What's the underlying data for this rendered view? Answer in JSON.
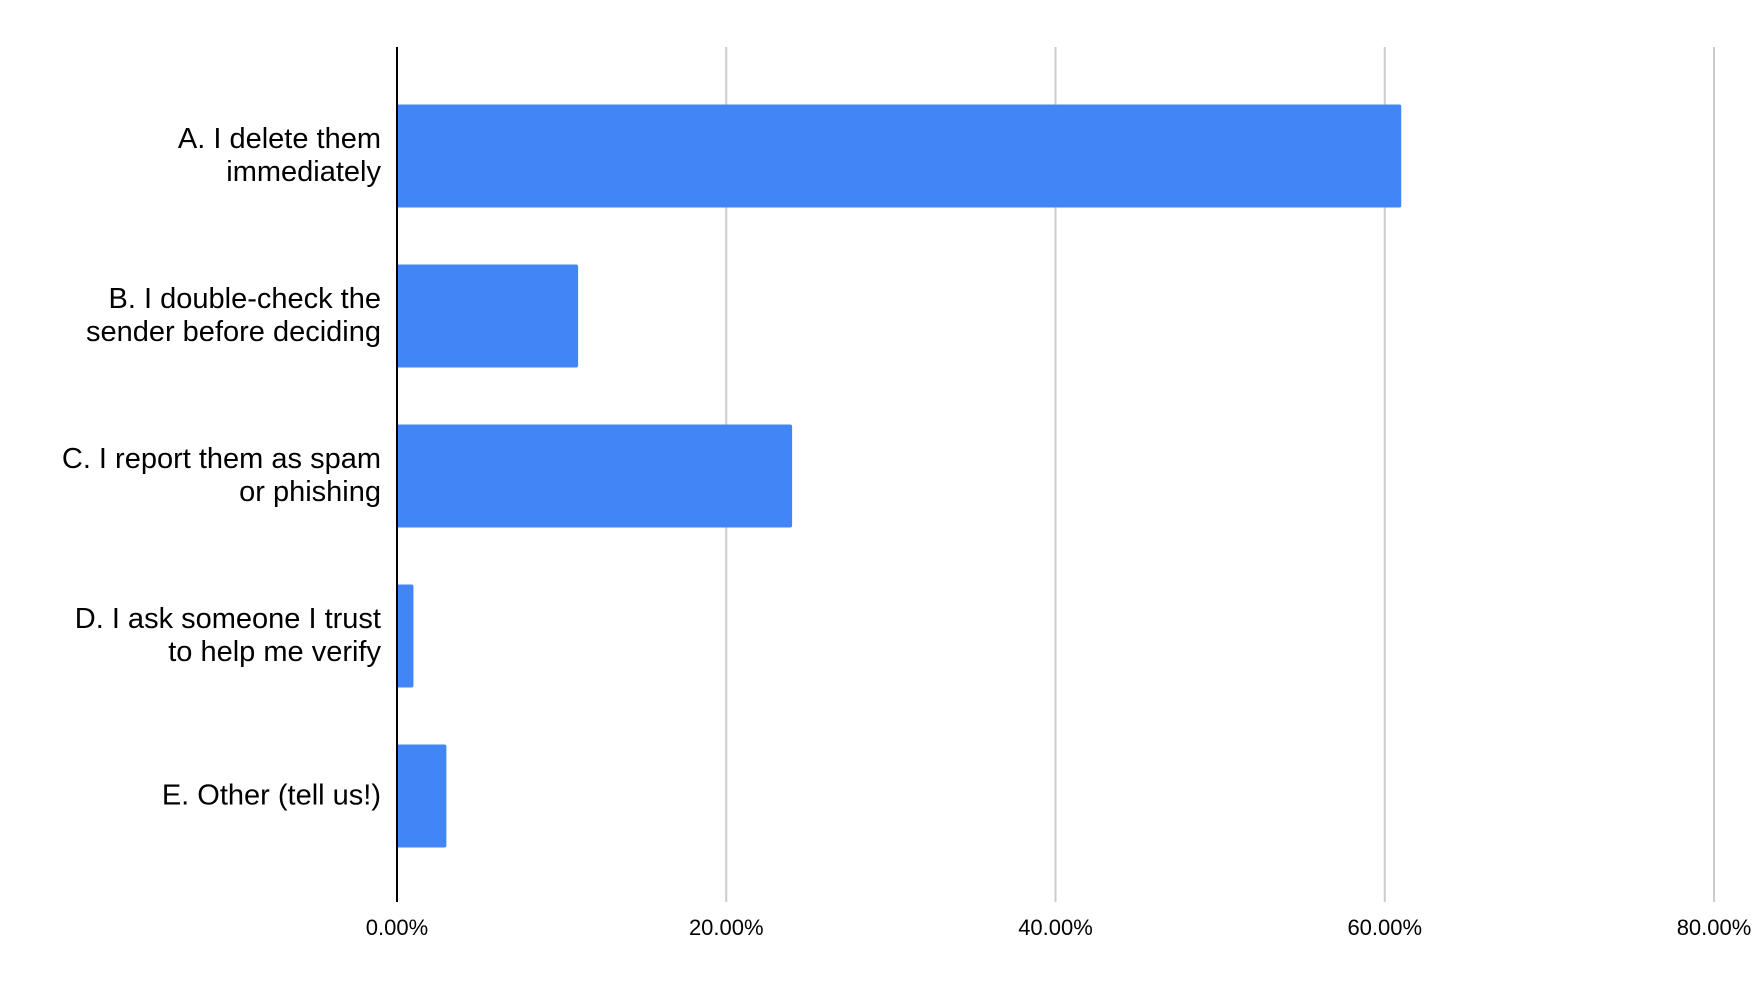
{
  "chart_data": {
    "type": "bar",
    "orientation": "horizontal",
    "categories": [
      "A. I delete them immediately",
      "B. I double-check the sender before deciding",
      "C. I report them as spam or phishing",
      "D. I ask someone I trust to help me verify",
      "E. Other (tell us!)"
    ],
    "values": [
      61.0,
      11.0,
      24.0,
      1.0,
      3.0
    ],
    "color": "#4285f4",
    "xlim": [
      0,
      80
    ],
    "xticks": [
      {
        "value": 0,
        "label": "0.00%"
      },
      {
        "value": 20,
        "label": "20.00%"
      },
      {
        "value": 40,
        "label": "40.00%"
      },
      {
        "value": 60,
        "label": "60.00%"
      },
      {
        "value": 80,
        "label": "80.00%"
      }
    ],
    "grid": true
  }
}
